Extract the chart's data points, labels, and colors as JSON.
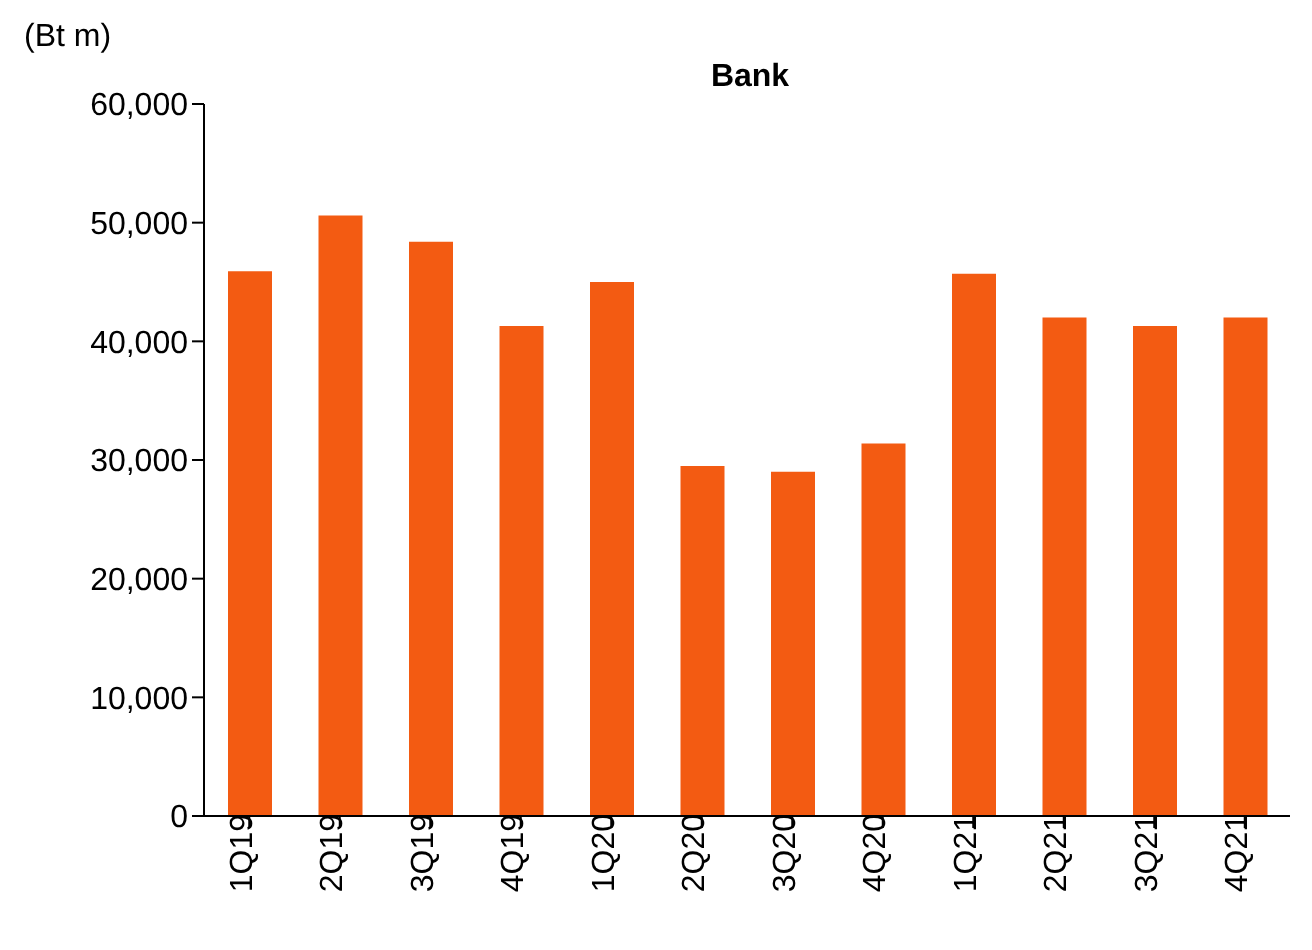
{
  "chart_data": {
    "type": "bar",
    "title": "Bank",
    "ylabel": "(Bt m)",
    "categories": [
      "1Q19",
      "2Q19",
      "3Q19",
      "4Q19",
      "1Q20",
      "2Q20",
      "3Q20",
      "4Q20",
      "1Q21",
      "2Q21",
      "3Q21",
      "4Q21"
    ],
    "values": [
      45900,
      50600,
      48400,
      41300,
      45000,
      29500,
      29000,
      31400,
      45700,
      42000,
      41300,
      42000
    ],
    "color": "#f35b12",
    "ylim": [
      0,
      60000
    ],
    "yticks": [
      0,
      {
        "value": 10000,
        "label": "10,000"
      },
      {
        "value": 20000,
        "label": "20,000"
      },
      {
        "value": 30000,
        "label": "30,000"
      },
      {
        "value": 40000,
        "label": "40,000"
      },
      {
        "value": 50000,
        "label": "50,000"
      },
      {
        "value": 60000,
        "label": "60,000"
      }
    ],
    "grid": false,
    "legend": false
  }
}
